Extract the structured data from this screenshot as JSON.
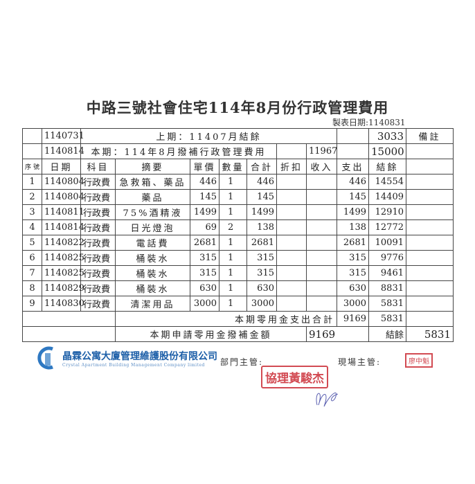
{
  "title": "中路三號社會住宅114年8月份行政管理費用",
  "made_date": "製表日期:1140831",
  "prev": {
    "date": "1140731",
    "label": "上期：11407月結餘",
    "balance": "3033",
    "remark": "備註"
  },
  "curr": {
    "date": "1140814",
    "label": "本期：114年8月撥補行政管理費用",
    "income": "11967",
    "balance": "15000"
  },
  "headers": [
    "序號",
    "日期",
    "科目",
    "摘要",
    "單價",
    "數量",
    "合計",
    "折扣",
    "收入",
    "支出",
    "結餘"
  ],
  "rows": [
    [
      "1",
      "1140804",
      "行政費",
      "急救箱、藥品",
      "446",
      "1",
      "446",
      "",
      "",
      "446",
      "14554"
    ],
    [
      "2",
      "1140804",
      "行政費",
      "藥品",
      "145",
      "1",
      "145",
      "",
      "",
      "145",
      "14409"
    ],
    [
      "3",
      "1140811",
      "行政費",
      "75%酒精液",
      "1499",
      "1",
      "1499",
      "",
      "",
      "1499",
      "12910"
    ],
    [
      "4",
      "1140814",
      "行政費",
      "日光燈泡",
      "69",
      "2",
      "138",
      "",
      "",
      "138",
      "12772"
    ],
    [
      "5",
      "1140822",
      "行政費",
      "電話費",
      "2681",
      "1",
      "2681",
      "",
      "",
      "2681",
      "10091"
    ],
    [
      "6",
      "1140825",
      "行政費",
      "桶裝水",
      "315",
      "1",
      "315",
      "",
      "",
      "315",
      "9776"
    ],
    [
      "7",
      "1140825",
      "行政費",
      "桶裝水",
      "315",
      "1",
      "315",
      "",
      "",
      "315",
      "9461"
    ],
    [
      "8",
      "1140829",
      "行政費",
      "桶裝水",
      "630",
      "1",
      "630",
      "",
      "",
      "630",
      "8831"
    ],
    [
      "9",
      "1140830",
      "行政費",
      "清潔用品",
      "3000",
      "1",
      "3000",
      "",
      "",
      "3000",
      "5831"
    ]
  ],
  "sum": {
    "label": "本期零用金支出合計",
    "expense": "9169",
    "balance": "5831"
  },
  "request": {
    "label": "本期申請零用金撥補金額",
    "amount": "9169",
    "balance_label": "結餘",
    "balance": "5831"
  },
  "company": {
    "zh": "晶霖公寓大廈管理維護股份有限公司",
    "en": "Crystal Apartment Building Management Company limited"
  },
  "dept_head": "部門主管:",
  "site_head": "現場主管:",
  "stamps": {
    "site": "廖中魁",
    "manager": "協理黃駿杰"
  },
  "colors": {
    "stamp": "#d24a52",
    "logo": "#1d5fa8"
  }
}
